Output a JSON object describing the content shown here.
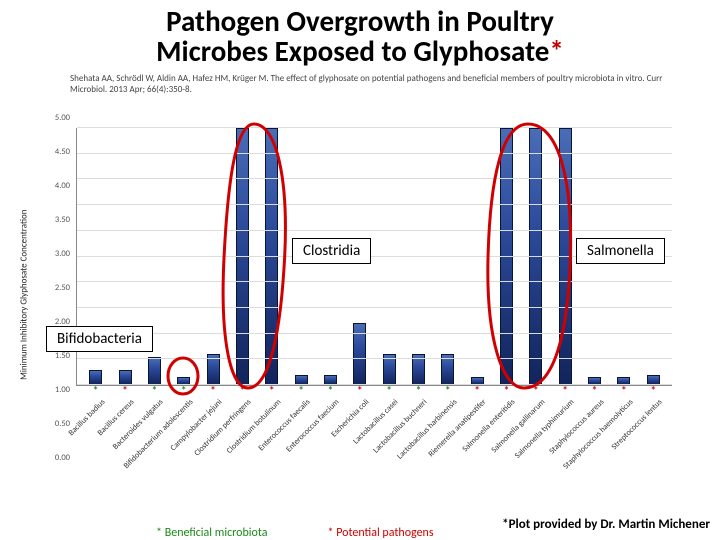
{
  "title": {
    "line1": "Pathogen Overgrowth in Poultry",
    "line2_a": "Microbes Exposed to Glyphosate",
    "line2_b": "*",
    "fontsize": 29
  },
  "citation": "Shehata AA, Schrödl W, Aldin AA, Hafez HM, Krüger M. The effect of glyphosate on potential pathogens and beneficial members of poultry microbiota in vitro.   Curr Microbiol. 2013 Apr; 66(4):350-8.",
  "chart": {
    "type": "bar",
    "ylabel": "Minimum Inhibitory Glyphosate Concentration",
    "ylim": [
      0,
      5.0
    ],
    "ytick_step": 0.5,
    "bar_color_gradient": [
      "#4a6db8",
      "#2b4a9a",
      "#12245c"
    ],
    "grid_color": "#dcdcdc",
    "background_color": "#ffffff",
    "fontsize_ticks": 8.5,
    "fontsize_xlabels": 8,
    "asterisk_colors": {
      "beneficial": "#1a8a1a",
      "pathogen": "#d00000"
    },
    "categories": [
      {
        "label": "Bacillus badius",
        "value": 0.3,
        "mark": "beneficial"
      },
      {
        "label": "Bacillus cereus",
        "value": 0.3,
        "mark": "pathogen"
      },
      {
        "label": "Bacteroides vulgatus",
        "value": 0.55,
        "mark": "beneficial"
      },
      {
        "label": "Bifidobacterium adolescentis",
        "value": 0.15,
        "mark": "beneficial"
      },
      {
        "label": "Campylobacter jejuni",
        "value": 0.6,
        "mark": "pathogen"
      },
      {
        "label": "Clostridium perfringens",
        "value": 5.0,
        "mark": "pathogen"
      },
      {
        "label": "Clostridium botulinum",
        "value": 5.0,
        "mark": "pathogen"
      },
      {
        "label": "Enterococcus faecalis",
        "value": 0.2,
        "mark": "beneficial"
      },
      {
        "label": "Enterococcus faecium",
        "value": 0.2,
        "mark": "beneficial"
      },
      {
        "label": "Escherichia coli",
        "value": 1.2,
        "mark": "pathogen"
      },
      {
        "label": "Lactobacillus casei",
        "value": 0.6,
        "mark": "beneficial"
      },
      {
        "label": "Lactobacillus buchneri",
        "value": 0.6,
        "mark": "beneficial"
      },
      {
        "label": "Lactobacillus harbinensis",
        "value": 0.6,
        "mark": "beneficial"
      },
      {
        "label": "Riemerella anatipestifer",
        "value": 0.15,
        "mark": "pathogen"
      },
      {
        "label": "Salmonella enteritidis",
        "value": 5.0,
        "mark": "pathogen"
      },
      {
        "label": "Salmonella gallinarum",
        "value": 5.0,
        "mark": "pathogen"
      },
      {
        "label": "Salmonella typhimurium",
        "value": 5.0,
        "mark": "pathogen"
      },
      {
        "label": "Staphylococcus aureus",
        "value": 0.15,
        "mark": "pathogen"
      },
      {
        "label": "Staphylococcus haemolyticus",
        "value": 0.15,
        "mark": "pathogen"
      },
      {
        "label": "Streptococcus lentus",
        "value": 0.2,
        "mark": "pathogen"
      }
    ],
    "legend": {
      "beneficial": "* Beneficial microbiota",
      "pathogen": "* Potential pathogens"
    }
  },
  "annotations": {
    "boxes": {
      "clostridia": "Clostridia",
      "salmonella": "Salmonella",
      "bifido": "Bifidobacteria"
    },
    "stroke_color": "#d00000"
  },
  "credit": "*Plot provided by Dr. Martin Michener"
}
